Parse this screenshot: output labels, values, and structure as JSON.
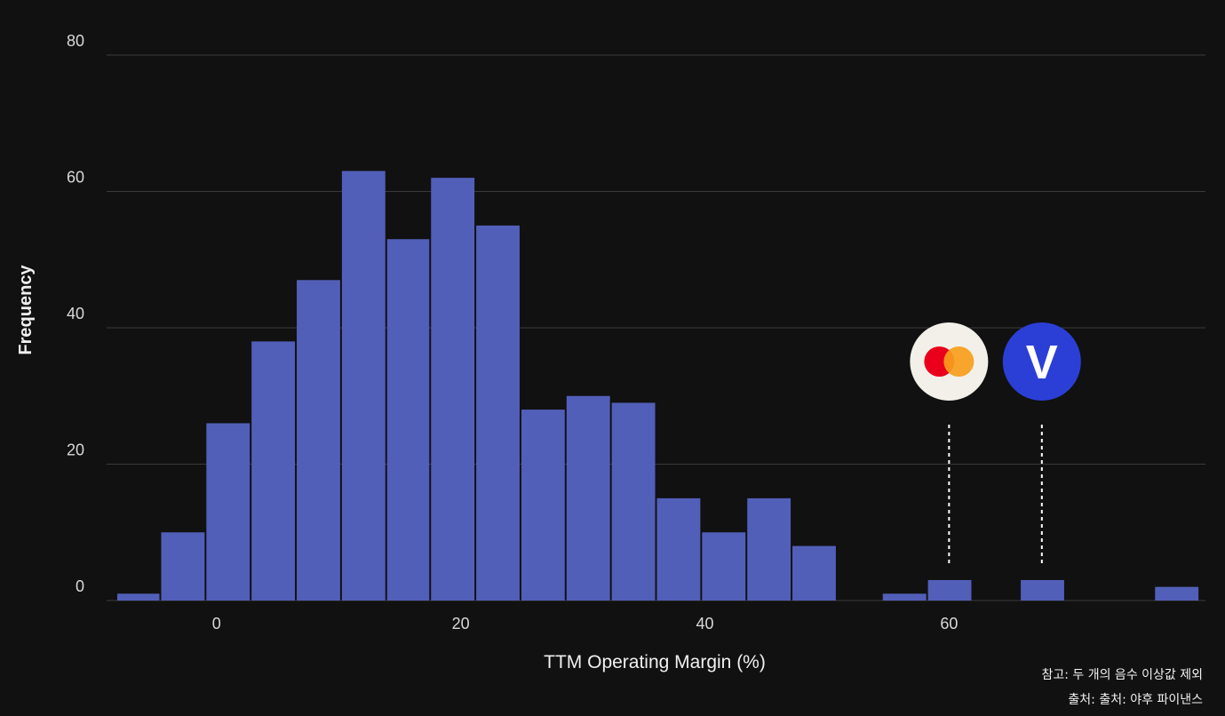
{
  "chart_data": {
    "type": "bar",
    "xlabel": "TTM Operating Margin (%)",
    "ylabel": "Frequency",
    "ylim": [
      0,
      80
    ],
    "xlim": [
      -9,
      81
    ],
    "yticks": [
      0,
      20,
      40,
      60,
      80
    ],
    "xticks": [
      0,
      20,
      40,
      60
    ],
    "grid": "horizontal",
    "bar_color": "#525fb9",
    "bins": [
      {
        "x0": -8.2,
        "x1": -4.6,
        "value": 1
      },
      {
        "x0": -4.6,
        "x1": -0.9,
        "value": 10
      },
      {
        "x0": -0.9,
        "x1": 2.8,
        "value": 26
      },
      {
        "x0": 2.8,
        "x1": 6.5,
        "value": 38
      },
      {
        "x0": 6.5,
        "x1": 10.2,
        "value": 47
      },
      {
        "x0": 10.2,
        "x1": 13.9,
        "value": 63
      },
      {
        "x0": 13.9,
        "x1": 17.5,
        "value": 53
      },
      {
        "x0": 17.5,
        "x1": 21.2,
        "value": 62
      },
      {
        "x0": 21.2,
        "x1": 24.9,
        "value": 55
      },
      {
        "x0": 24.9,
        "x1": 28.6,
        "value": 28
      },
      {
        "x0": 28.6,
        "x1": 32.3,
        "value": 30
      },
      {
        "x0": 32.3,
        "x1": 36.0,
        "value": 29
      },
      {
        "x0": 36.0,
        "x1": 39.7,
        "value": 15
      },
      {
        "x0": 39.7,
        "x1": 43.4,
        "value": 10
      },
      {
        "x0": 43.4,
        "x1": 47.1,
        "value": 15
      },
      {
        "x0": 47.1,
        "x1": 50.8,
        "value": 8
      },
      {
        "x0": 54.5,
        "x1": 58.2,
        "value": 1
      },
      {
        "x0": 58.2,
        "x1": 61.9,
        "value": 3
      },
      {
        "x0": 65.8,
        "x1": 69.5,
        "value": 3
      },
      {
        "x0": 76.8,
        "x1": 80.5,
        "value": 2
      }
    ],
    "annotations": [
      {
        "logo": "mastercard-logo",
        "x": 60,
        "colors": [
          "#eb001b",
          "#f79e1b"
        ],
        "badge_bg": "#f3f0ea"
      },
      {
        "logo": "visa-logo",
        "x": 67.6,
        "letter": "V",
        "badge_bg": "#2b3fd6"
      }
    ]
  },
  "notes": {
    "note_line": "참고: 두 개의 음수 이상값 제외",
    "source_line": "출처: 출처: 야후 파이낸스"
  }
}
